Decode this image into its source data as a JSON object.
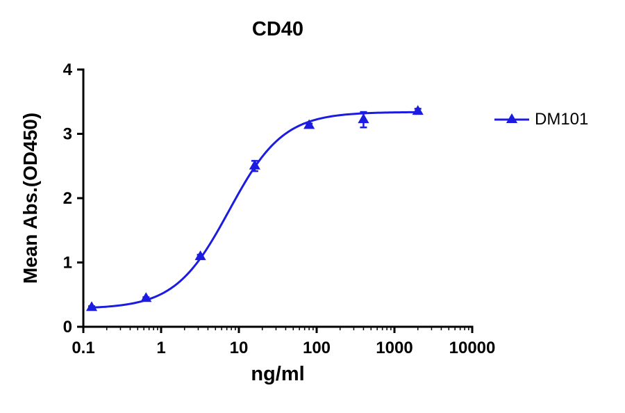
{
  "chart_data": {
    "type": "scatter",
    "title": "CD40",
    "xlabel": "ng/ml",
    "ylabel": "Mean Abs.(OD450)",
    "x_scale": "log",
    "xlim": [
      0.1,
      10000
    ],
    "ylim": [
      0,
      4
    ],
    "x_ticks": [
      0.1,
      1,
      10,
      100,
      1000,
      10000
    ],
    "x_tick_labels": [
      "0.1",
      "1",
      "10",
      "100",
      "1000",
      "10000"
    ],
    "y_ticks": [
      0,
      1,
      2,
      3,
      4
    ],
    "y_tick_labels": [
      "0",
      "1",
      "2",
      "3",
      "4"
    ],
    "grid": false,
    "legend_position": "right",
    "axis_color": "#000000",
    "series": [
      {
        "name": "DM101",
        "color": "#1C1CE0",
        "marker": "triangle-up",
        "x": [
          0.128,
          0.64,
          3.2,
          16,
          80,
          400,
          2000
        ],
        "y": [
          0.3,
          0.44,
          1.09,
          2.5,
          3.13,
          3.22,
          3.35
        ],
        "y_err": [
          0.02,
          0.02,
          0.03,
          0.08,
          0.03,
          0.12,
          0.04
        ],
        "fit": {
          "model": "4PL",
          "bottom": 0.28,
          "top": 3.34,
          "ec50": 7.5,
          "hill": 1.25
        }
      }
    ]
  }
}
